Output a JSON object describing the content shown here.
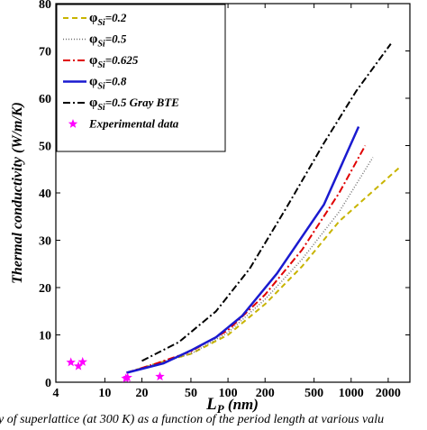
{
  "caption": "y of superlattice (at 300 K) as a function of the period length at various valu",
  "chart_data": {
    "type": "line",
    "xscale": "log",
    "xlim": [
      4,
      3000
    ],
    "ylim": [
      0,
      80
    ],
    "xlabel_main": "L",
    "xlabel_sub": "P",
    "xlabel_unit": " (nm)",
    "ylabel": "Thermal conductivity (W/m/K)",
    "x_ticks": [
      {
        "value": 4,
        "label": "4"
      },
      {
        "value": 10,
        "label": "10"
      },
      {
        "value": 20,
        "label": "20"
      },
      {
        "value": 50,
        "label": "50"
      },
      {
        "value": 100,
        "label": "100"
      },
      {
        "value": 200,
        "label": "200"
      },
      {
        "value": 500,
        "label": "500"
      },
      {
        "value": 1000,
        "label": "1000"
      },
      {
        "value": 2000,
        "label": "2000"
      }
    ],
    "y_ticks": [
      {
        "value": 0,
        "label": "0"
      },
      {
        "value": 10,
        "label": "10"
      },
      {
        "value": 20,
        "label": "20"
      },
      {
        "value": 30,
        "label": "30"
      },
      {
        "value": 40,
        "label": "40"
      },
      {
        "value": 50,
        "label": "50"
      },
      {
        "value": 60,
        "label": "60"
      },
      {
        "value": 70,
        "label": "70"
      },
      {
        "value": 80,
        "label": "80"
      }
    ],
    "series": [
      {
        "name_prefix": "φ",
        "name_sub": "Si",
        "name_suffix": "=0.2",
        "color": "#c8b400",
        "dash": "6,4",
        "width": 2,
        "points": [
          [
            15,
            2
          ],
          [
            25,
            3.8
          ],
          [
            50,
            6
          ],
          [
            100,
            10
          ],
          [
            200,
            16.5
          ],
          [
            400,
            24.5
          ],
          [
            800,
            34
          ],
          [
            1600,
            41
          ],
          [
            2500,
            45.5
          ]
        ]
      },
      {
        "name_prefix": "φ",
        "name_sub": "Si",
        "name_suffix": "=0.5",
        "color": "#707070",
        "dash": "1,2",
        "width": 1.5,
        "points": [
          [
            15,
            2
          ],
          [
            25,
            3.8
          ],
          [
            50,
            6
          ],
          [
            100,
            10.5
          ],
          [
            200,
            17.5
          ],
          [
            400,
            26
          ],
          [
            800,
            36
          ],
          [
            1500,
            47.5
          ]
        ]
      },
      {
        "name_prefix": "φ",
        "name_sub": "Si",
        "name_suffix": "=0.625",
        "color": "#e00000",
        "dash": "8,3,2,3",
        "width": 2,
        "points": [
          [
            15,
            2
          ],
          [
            25,
            3.8
          ],
          [
            50,
            6.5
          ],
          [
            100,
            11
          ],
          [
            200,
            18.5
          ],
          [
            400,
            28
          ],
          [
            800,
            40
          ],
          [
            1300,
            50
          ]
        ]
      },
      {
        "name_prefix": "φ",
        "name_sub": "Si",
        "name_suffix": "=0.8",
        "color": "#1a1ad0",
        "dash": "",
        "width": 2.5,
        "points": [
          [
            15,
            2
          ],
          [
            30,
            4
          ],
          [
            50,
            6.7
          ],
          [
            80,
            9.5
          ],
          [
            130,
            14
          ],
          [
            250,
            23
          ],
          [
            600,
            37.5
          ],
          [
            1150,
            54
          ]
        ]
      },
      {
        "name_prefix": "φ",
        "name_sub": "Si",
        "name_suffix": "=0.5 Gray BTE",
        "color": "#000000",
        "dash": "8,3,2,3",
        "width": 2,
        "points": [
          [
            20,
            4.5
          ],
          [
            40,
            8.5
          ],
          [
            80,
            15
          ],
          [
            150,
            24
          ],
          [
            300,
            37
          ],
          [
            600,
            50.5
          ],
          [
            1100,
            61.5
          ],
          [
            2100,
            71.5
          ]
        ]
      }
    ],
    "experimental": {
      "name": "Experimental data",
      "color": "#ff00ff",
      "points": [
        [
          5.3,
          4.2
        ],
        [
          6.1,
          3.4
        ],
        [
          6.6,
          4.3
        ],
        [
          14.8,
          0.8
        ],
        [
          15.3,
          1.0
        ],
        [
          28,
          1.2
        ]
      ]
    }
  }
}
